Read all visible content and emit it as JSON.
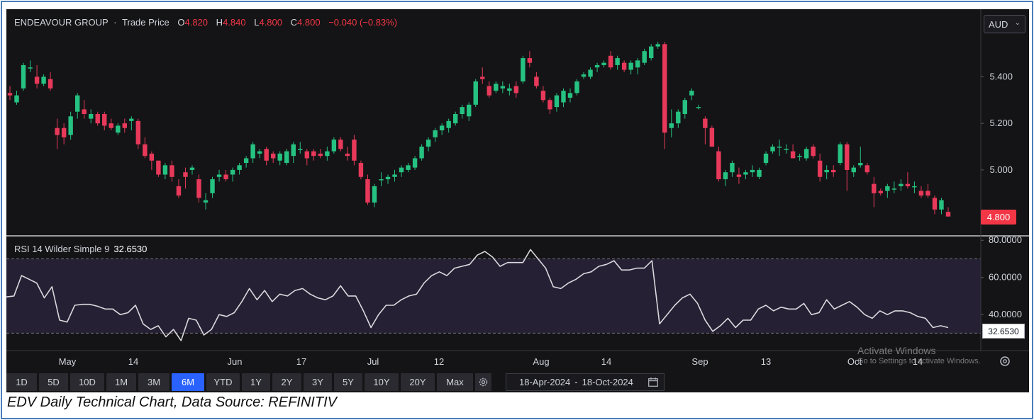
{
  "header": {
    "symbol": "ENDEAVOUR GROUP",
    "separator": "·",
    "price_type": "Trade Price",
    "open_label": "O",
    "open": "4.820",
    "high_label": "H",
    "high": "4.840",
    "low_label": "L",
    "low": "4.800",
    "close_label": "C",
    "close": "4.800",
    "change": "−0.040 (−0.83%)"
  },
  "currency": {
    "label": "AUD",
    "caret": "⌄"
  },
  "last_price_tag": "4.800",
  "rsi": {
    "label": "RSI 14 Wilder Simple 9",
    "value": "32.6530",
    "tag": "32.6530"
  },
  "watermark": {
    "line1": "Activate Windows",
    "line2": "Go to Settings to activate Windows."
  },
  "toolbar": {
    "timeframes": [
      "1D",
      "5D",
      "10D",
      "1M",
      "3M",
      "6M",
      "YTD",
      "1Y",
      "2Y",
      "3Y",
      "5Y",
      "10Y",
      "20Y",
      "Max"
    ],
    "active": "6M",
    "date_from": "18-Apr-2024",
    "date_sep": "-",
    "date_to": "18-Oct-2024"
  },
  "caption": "EDV Daily Technical Chart, Data Source: REFINITIV",
  "colors": {
    "up": "#26c281",
    "down": "#e8395a",
    "background": "#141416",
    "rsi_line": "#d9d9de",
    "rsi_band": "#252033"
  },
  "chart_data": [
    {
      "type": "candlestick",
      "title": "ENDEAVOUR GROUP · Trade Price",
      "ylim": [
        4.72,
        5.69
      ],
      "y_ticks": [
        "5.400",
        "5.200",
        "5.000"
      ],
      "x_ticks": [
        "May",
        "14",
        "Jun",
        "17",
        "Jul",
        "12",
        "Aug",
        "14",
        "Sep",
        "13",
        "Oct",
        "14"
      ],
      "candles": [
        [
          5.33,
          5.36,
          5.3,
          5.32
        ],
        [
          5.29,
          5.34,
          5.28,
          5.32
        ],
        [
          5.35,
          5.46,
          5.34,
          5.45
        ],
        [
          5.44,
          5.47,
          5.42,
          5.44
        ],
        [
          5.4,
          5.45,
          5.35,
          5.37
        ],
        [
          5.37,
          5.41,
          5.36,
          5.4
        ],
        [
          5.39,
          5.42,
          5.34,
          5.35
        ],
        [
          5.18,
          5.22,
          5.09,
          5.15
        ],
        [
          5.18,
          5.2,
          5.11,
          5.14
        ],
        [
          5.15,
          5.25,
          5.13,
          5.23
        ],
        [
          5.25,
          5.33,
          5.22,
          5.32
        ],
        [
          5.26,
          5.3,
          5.22,
          5.24
        ],
        [
          5.22,
          5.26,
          5.2,
          5.24
        ],
        [
          5.24,
          5.25,
          5.19,
          5.2
        ],
        [
          5.24,
          5.25,
          5.17,
          5.19
        ],
        [
          5.2,
          5.22,
          5.17,
          5.18
        ],
        [
          5.16,
          5.2,
          5.15,
          5.19
        ],
        [
          5.2,
          5.22,
          5.16,
          5.18
        ],
        [
          5.21,
          5.23,
          5.17,
          5.22
        ],
        [
          5.21,
          5.22,
          5.09,
          5.11
        ],
        [
          5.11,
          5.14,
          5.05,
          5.06
        ],
        [
          5.07,
          5.08,
          5.0,
          5.04
        ],
        [
          5.04,
          5.04,
          4.97,
          4.98
        ],
        [
          4.98,
          5.03,
          4.96,
          5.02
        ],
        [
          5.02,
          5.04,
          4.95,
          4.97
        ],
        [
          4.93,
          4.96,
          4.88,
          4.89
        ],
        [
          4.99,
          5.01,
          4.92,
          4.97
        ],
        [
          5.0,
          5.02,
          4.98,
          5.01
        ],
        [
          4.96,
          4.98,
          4.86,
          4.88
        ],
        [
          4.86,
          4.9,
          4.83,
          4.87
        ],
        [
          4.9,
          4.97,
          4.88,
          4.96
        ],
        [
          4.97,
          5.0,
          4.95,
          4.98
        ],
        [
          4.98,
          5.0,
          4.95,
          4.96
        ],
        [
          4.98,
          5.01,
          4.95,
          5.0
        ],
        [
          5.0,
          5.03,
          4.98,
          5.02
        ],
        [
          5.03,
          5.06,
          5.01,
          5.05
        ],
        [
          5.05,
          5.12,
          5.03,
          5.11
        ],
        [
          5.07,
          5.09,
          5.05,
          5.08
        ],
        [
          5.09,
          5.1,
          5.02,
          5.04
        ],
        [
          5.07,
          5.08,
          5.03,
          5.05
        ],
        [
          5.04,
          5.08,
          5.02,
          5.07
        ],
        [
          5.03,
          5.09,
          5.02,
          5.08
        ],
        [
          5.06,
          5.12,
          5.03,
          5.11
        ],
        [
          5.09,
          5.12,
          5.07,
          5.09
        ],
        [
          5.08,
          5.09,
          5.02,
          5.05
        ],
        [
          5.08,
          5.09,
          5.04,
          5.06
        ],
        [
          5.07,
          5.09,
          5.05,
          5.06
        ],
        [
          5.06,
          5.1,
          5.04,
          5.08
        ],
        [
          5.08,
          5.14,
          5.07,
          5.13
        ],
        [
          5.13,
          5.14,
          5.08,
          5.09
        ],
        [
          5.07,
          5.1,
          5.04,
          5.06
        ],
        [
          5.13,
          5.15,
          5.02,
          5.04
        ],
        [
          5.03,
          5.04,
          4.96,
          4.97
        ],
        [
          4.96,
          4.98,
          4.85,
          4.86
        ],
        [
          4.86,
          4.94,
          4.84,
          4.93
        ],
        [
          4.96,
          4.99,
          4.93,
          4.96
        ],
        [
          4.96,
          4.98,
          4.94,
          4.97
        ],
        [
          4.97,
          5.0,
          4.95,
          4.98
        ],
        [
          4.99,
          5.02,
          4.97,
          5.01
        ],
        [
          5.0,
          5.03,
          4.99,
          5.02
        ],
        [
          5.01,
          5.06,
          5.0,
          5.05
        ],
        [
          5.05,
          5.11,
          5.04,
          5.1
        ],
        [
          5.1,
          5.14,
          5.08,
          5.13
        ],
        [
          5.14,
          5.18,
          5.12,
          5.17
        ],
        [
          5.17,
          5.2,
          5.15,
          5.19
        ],
        [
          5.18,
          5.22,
          5.16,
          5.21
        ],
        [
          5.2,
          5.25,
          5.19,
          5.24
        ],
        [
          5.24,
          5.28,
          5.22,
          5.27
        ],
        [
          5.23,
          5.29,
          5.21,
          5.28
        ],
        [
          5.28,
          5.39,
          5.27,
          5.38
        ],
        [
          5.4,
          5.44,
          5.37,
          5.39
        ],
        [
          5.36,
          5.38,
          5.31,
          5.32
        ],
        [
          5.34,
          5.38,
          5.33,
          5.37
        ],
        [
          5.35,
          5.38,
          5.33,
          5.36
        ],
        [
          5.34,
          5.37,
          5.32,
          5.35
        ],
        [
          5.36,
          5.38,
          5.31,
          5.33
        ],
        [
          5.38,
          5.49,
          5.37,
          5.48
        ],
        [
          5.48,
          5.51,
          5.44,
          5.46
        ],
        [
          5.4,
          5.42,
          5.35,
          5.36
        ],
        [
          5.34,
          5.36,
          5.29,
          5.3
        ],
        [
          5.3,
          5.31,
          5.24,
          5.26
        ],
        [
          5.27,
          5.33,
          5.25,
          5.32
        ],
        [
          5.29,
          5.35,
          5.27,
          5.34
        ],
        [
          5.31,
          5.35,
          5.29,
          5.33
        ],
        [
          5.33,
          5.39,
          5.32,
          5.38
        ],
        [
          5.4,
          5.42,
          5.39,
          5.41
        ],
        [
          5.4,
          5.44,
          5.39,
          5.43
        ],
        [
          5.44,
          5.46,
          5.42,
          5.45
        ],
        [
          5.45,
          5.47,
          5.44,
          5.46
        ],
        [
          5.49,
          5.51,
          5.43,
          5.44
        ],
        [
          5.45,
          5.49,
          5.43,
          5.48
        ],
        [
          5.46,
          5.47,
          5.42,
          5.43
        ],
        [
          5.43,
          5.47,
          5.41,
          5.46
        ],
        [
          5.44,
          5.48,
          5.41,
          5.47
        ],
        [
          5.46,
          5.52,
          5.45,
          5.51
        ],
        [
          5.48,
          5.54,
          5.47,
          5.53
        ],
        [
          5.53,
          5.55,
          5.52,
          5.54
        ],
        [
          5.54,
          5.55,
          5.09,
          5.16
        ],
        [
          5.18,
          5.26,
          5.14,
          5.2
        ],
        [
          5.2,
          5.26,
          5.18,
          5.25
        ],
        [
          5.24,
          5.31,
          5.22,
          5.3
        ],
        [
          5.32,
          5.35,
          5.3,
          5.34
        ],
        [
          5.27,
          5.28,
          5.26,
          5.27
        ],
        [
          5.22,
          5.23,
          5.11,
          5.18
        ],
        [
          5.18,
          5.19,
          5.1,
          5.1
        ],
        [
          5.08,
          5.1,
          4.95,
          4.96
        ],
        [
          4.96,
          5.0,
          4.93,
          4.99
        ],
        [
          4.99,
          5.04,
          4.97,
          5.03
        ],
        [
          4.98,
          5.01,
          4.94,
          4.97
        ],
        [
          4.98,
          5.0,
          4.96,
          4.99
        ],
        [
          4.99,
          5.02,
          4.97,
          5.0
        ],
        [
          4.97,
          5.01,
          4.96,
          5.0
        ],
        [
          5.03,
          5.08,
          5.02,
          5.07
        ],
        [
          5.08,
          5.11,
          5.07,
          5.1
        ],
        [
          5.1,
          5.13,
          5.06,
          5.1
        ],
        [
          5.09,
          5.11,
          5.07,
          5.09
        ],
        [
          5.08,
          5.11,
          5.05,
          5.05
        ],
        [
          5.06,
          5.07,
          5.04,
          5.06
        ],
        [
          5.05,
          5.1,
          5.04,
          5.09
        ],
        [
          5.1,
          5.11,
          5.05,
          5.06
        ],
        [
          5.04,
          5.07,
          4.95,
          4.97
        ],
        [
          4.99,
          5.02,
          4.96,
          5.0
        ],
        [
          5.0,
          5.02,
          4.97,
          4.99
        ],
        [
          5.03,
          5.12,
          5.02,
          5.11
        ],
        [
          5.11,
          5.12,
          4.91,
          5.0
        ],
        [
          4.99,
          5.02,
          4.97,
          5.01
        ],
        [
          5.02,
          5.1,
          5.01,
          5.03
        ],
        [
          5.02,
          5.03,
          4.98,
          4.99
        ],
        [
          4.94,
          4.97,
          4.84,
          4.9
        ],
        [
          4.91,
          4.92,
          4.89,
          4.9
        ],
        [
          4.91,
          4.94,
          4.88,
          4.93
        ],
        [
          4.92,
          4.95,
          4.9,
          4.92
        ],
        [
          4.93,
          4.96,
          4.91,
          4.94
        ],
        [
          4.94,
          4.99,
          4.92,
          4.93
        ],
        [
          4.93,
          4.95,
          4.9,
          4.93
        ],
        [
          4.91,
          4.93,
          4.88,
          4.89
        ],
        [
          4.91,
          4.94,
          4.88,
          4.89
        ],
        [
          4.88,
          4.89,
          4.81,
          4.83
        ],
        [
          4.83,
          4.88,
          4.81,
          4.87
        ],
        [
          4.82,
          4.84,
          4.8,
          4.8
        ]
      ]
    },
    {
      "type": "line",
      "title": "RSI 14 Wilder Simple 9",
      "ylim": [
        21,
        82
      ],
      "y_ticks": [
        "80.0000",
        "60.0000",
        "40.0000"
      ],
      "bands": [
        70,
        30
      ],
      "last_value": 32.653,
      "values": [
        49.5,
        50,
        61,
        59,
        57,
        49,
        55,
        37,
        36,
        45,
        45.5,
        45.5,
        44.5,
        43,
        43,
        40,
        41,
        45,
        35,
        32,
        34,
        28,
        32,
        26,
        38,
        37,
        29,
        32,
        40,
        39,
        41,
        47,
        54,
        48,
        53,
        47,
        51,
        50,
        53,
        54,
        51,
        49,
        48,
        50,
        55.5,
        50,
        50,
        42,
        33,
        40,
        45,
        45,
        48,
        50,
        51,
        57,
        61,
        63,
        61,
        65,
        66,
        67,
        72,
        74,
        71,
        66,
        68,
        68,
        68,
        75,
        70,
        65,
        55,
        54,
        57,
        59,
        62,
        63,
        66,
        67,
        69,
        64,
        64,
        65,
        65,
        69,
        35,
        40,
        45,
        49,
        51,
        46,
        37,
        31,
        34,
        38,
        33,
        37,
        37,
        43,
        45,
        42,
        44,
        43,
        43,
        46,
        40,
        41,
        48,
        43,
        45,
        47,
        44,
        40,
        38,
        42,
        40,
        42,
        42,
        41,
        39,
        38,
        33,
        34,
        33
      ]
    }
  ]
}
